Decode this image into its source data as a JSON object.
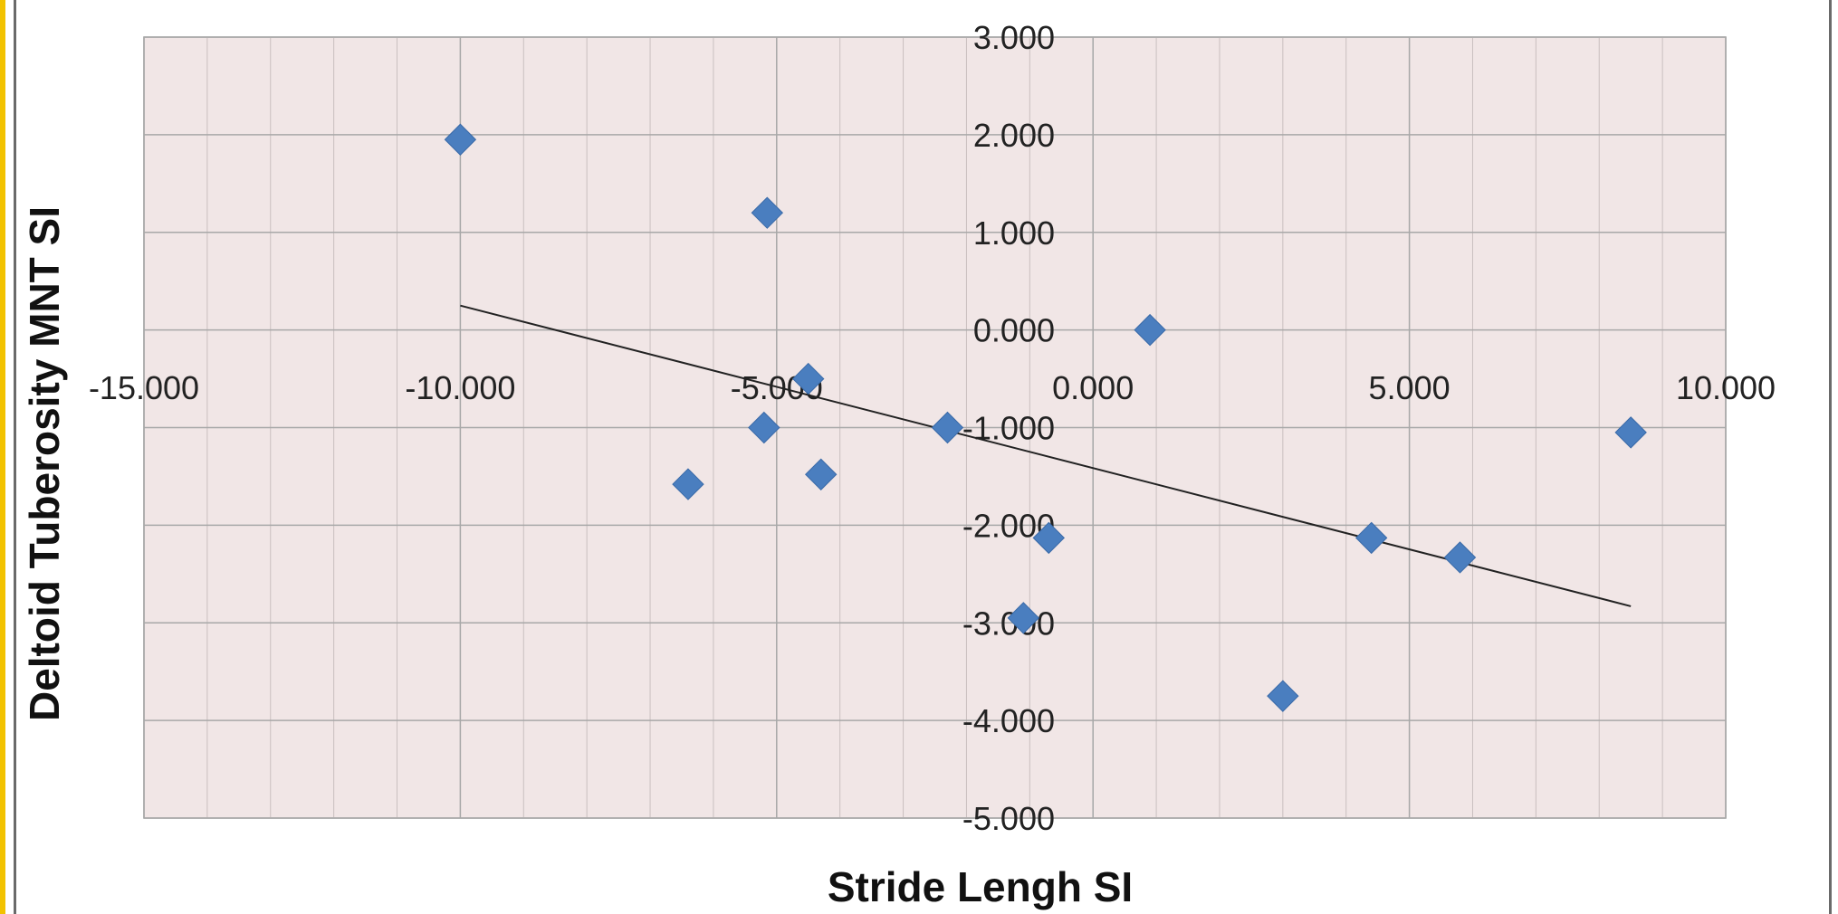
{
  "chart_data": {
    "type": "scatter",
    "xlabel": "Stride Lengh SI",
    "ylabel": "Deltoid Tuberosity MNT SI",
    "xlim": [
      -15,
      10
    ],
    "ylim": [
      -5,
      3
    ],
    "x_ticks": [
      -15,
      -10,
      -5,
      0,
      5,
      10
    ],
    "x_tick_labels": [
      "-15.000",
      "-10.000",
      "-5.000",
      "0.000",
      "5.000",
      "10.000"
    ],
    "y_ticks": [
      3,
      2,
      1,
      0,
      -1,
      -2,
      -3,
      -4,
      -5
    ],
    "y_tick_labels": [
      "3.000",
      "2.000",
      "1.000",
      "0.000",
      "-1.000",
      "-2.000",
      "-3.000",
      "-4.000",
      "-5.000"
    ],
    "grid": true,
    "legend": "none",
    "colors": {
      "plot_background": "#f1e6e6",
      "marker": "#4a7ebf",
      "trendline": "#222222",
      "grid": "#a8a8a8"
    },
    "series": [
      {
        "marker": "diamond",
        "x": [
          -10.0,
          -5.15,
          -4.5,
          -5.2,
          -6.4,
          -4.3,
          -2.3,
          -0.7,
          -1.1,
          0.9,
          3.0,
          4.4,
          5.8,
          8.5
        ],
        "y": [
          1.95,
          1.2,
          -0.5,
          -1.0,
          -1.58,
          -1.48,
          -1.0,
          -2.13,
          -2.95,
          0.0,
          -3.75,
          -2.13,
          -2.33,
          -1.05
        ]
      }
    ],
    "trendline": {
      "type": "linear",
      "x": [
        -10.0,
        8.5
      ],
      "y": [
        0.25,
        -2.83
      ]
    }
  }
}
